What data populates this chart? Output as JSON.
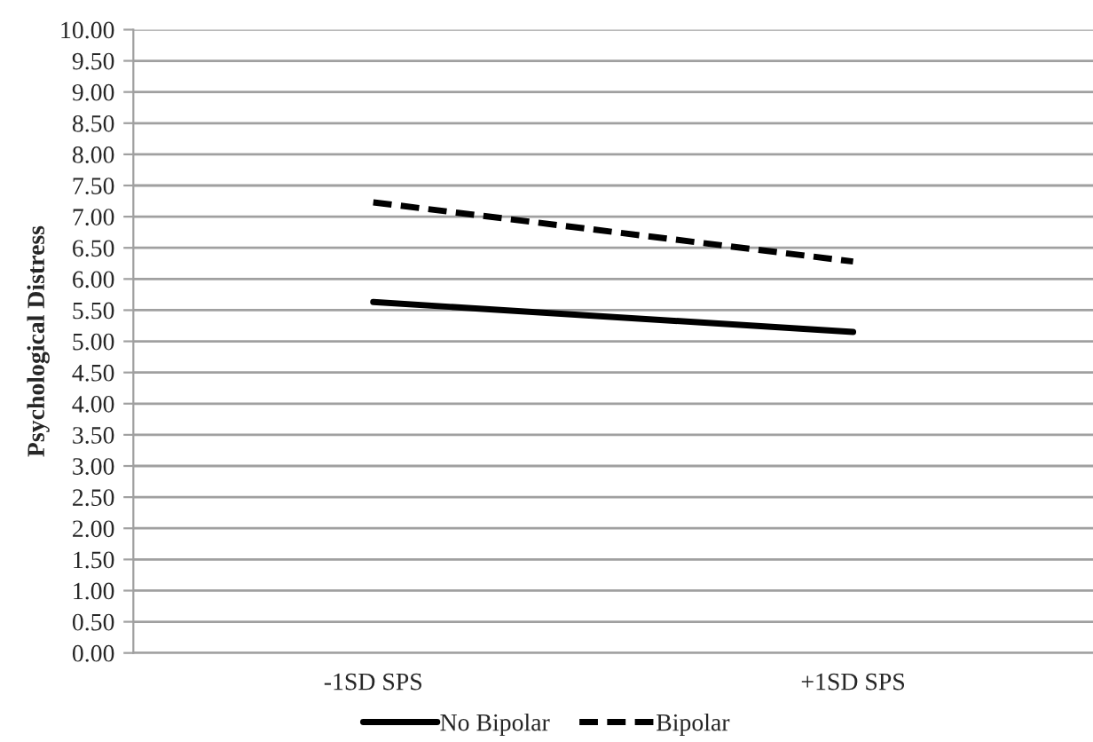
{
  "chart_data": {
    "type": "line",
    "ylabel": "Psychological Distress",
    "categories": [
      "-1SD SPS",
      "+1SD SPS"
    ],
    "series": [
      {
        "name": "No Bipolar",
        "color": "#000000",
        "values": [
          5.63,
          5.15
        ],
        "line_style": "solid"
      },
      {
        "name": "Bipolar",
        "color": "#000000",
        "values": [
          7.23,
          6.28
        ],
        "line_style": "dashed"
      }
    ],
    "ylim": [
      0,
      10
    ],
    "yticks": [
      {
        "value": 0,
        "label": "0.00"
      },
      {
        "value": 0.5,
        "label": "0.50"
      },
      {
        "value": 1,
        "label": "1.00"
      },
      {
        "value": 1.5,
        "label": "1.50"
      },
      {
        "value": 2,
        "label": "2.00"
      },
      {
        "value": 2.5,
        "label": "2.50"
      },
      {
        "value": 3,
        "label": "3.00"
      },
      {
        "value": 3.5,
        "label": "3.50"
      },
      {
        "value": 4,
        "label": "4.00"
      },
      {
        "value": 4.5,
        "label": "4.50"
      },
      {
        "value": 5,
        "label": "5.00"
      },
      {
        "value": 5.5,
        "label": "5.50"
      },
      {
        "value": 6,
        "label": "6.00"
      },
      {
        "value": 6.5,
        "label": "6.50"
      },
      {
        "value": 7,
        "label": "7.00"
      },
      {
        "value": 7.5,
        "label": "7.50"
      },
      {
        "value": 8,
        "label": "8.00"
      },
      {
        "value": 8.5,
        "label": "8.50"
      },
      {
        "value": 9,
        "label": "9.00"
      },
      {
        "value": 9.5,
        "label": "9.50"
      },
      {
        "value": 10,
        "label": "10.00"
      }
    ],
    "grid": "y",
    "legend": "bottom",
    "marker": "none"
  }
}
